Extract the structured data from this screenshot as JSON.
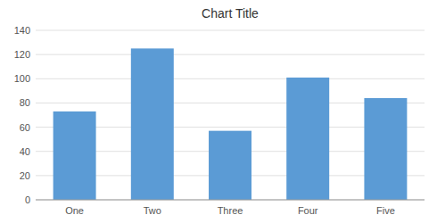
{
  "chart_data": {
    "type": "bar",
    "title": "Chart Title",
    "categories": [
      "One",
      "Two",
      "Three",
      "Four",
      "Five"
    ],
    "values": [
      73,
      125,
      57,
      101,
      84
    ],
    "color": "#5B9BD5",
    "ylim": [
      0,
      140
    ],
    "yticks": [
      0,
      20,
      40,
      60,
      80,
      100,
      120,
      140
    ],
    "grid": true
  }
}
